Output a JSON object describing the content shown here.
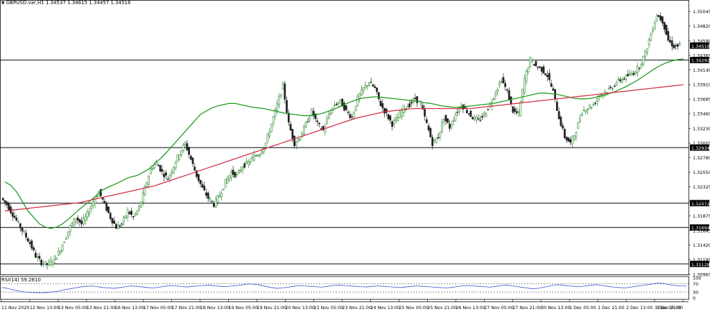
{
  "header": {
    "symbol_line": "GBPUSD.var,H1  1.34537 1.34615 1.34457 1.34516"
  },
  "rsi_panel": {
    "label": "RSI(14) 59.2810",
    "levels": [
      70,
      30
    ],
    "axis_labels": [
      "100",
      "70",
      "30",
      "0"
    ],
    "color": "#3b4fd6",
    "values": [
      52,
      48,
      40,
      35,
      30,
      28,
      26,
      25,
      27,
      30,
      34,
      40,
      45,
      50,
      55,
      58,
      60,
      56,
      52,
      50,
      48,
      52,
      56,
      60,
      58,
      55,
      52,
      50,
      54,
      58,
      62,
      60,
      57,
      55,
      58,
      60,
      62,
      64,
      60,
      58,
      56,
      60,
      62,
      66,
      70,
      68,
      64,
      58,
      52,
      48,
      50,
      54,
      58,
      62,
      60,
      58,
      56,
      54,
      58,
      62,
      64,
      62,
      60,
      58,
      56,
      55,
      58,
      60,
      58,
      56,
      54,
      52,
      55,
      58,
      60,
      58,
      56,
      54,
      52,
      50,
      52,
      56,
      60,
      62,
      60,
      58,
      56,
      54,
      58,
      62,
      64,
      60,
      56,
      52,
      48,
      46,
      50,
      56,
      62,
      66,
      64,
      60,
      58,
      56,
      60,
      64,
      66,
      62,
      58,
      54,
      52,
      50,
      54,
      58,
      62,
      66,
      70,
      74,
      72,
      66,
      62,
      60,
      59
    ]
  },
  "chart_data": {
    "type": "candlestick",
    "symbol": "GBPUSD.var",
    "timeframe": "H1",
    "last_price": "1.34516",
    "ylim": [
      1.30965,
      1.3516
    ],
    "y_tick_labels": [
      "1.35045",
      "1.34820",
      "1.34590",
      "1.34365",
      "1.34140",
      "1.33910",
      "1.33685",
      "1.33460",
      "1.33230",
      "1.33005",
      "1.32780",
      "1.32550",
      "1.32325",
      "1.32100",
      "1.31875",
      "1.31645",
      "1.31420",
      "1.31195",
      "1.30965"
    ],
    "x_tick_labels": [
      "11 Nov 2020",
      "12 Nov 13:00",
      "13 Nov 05:00",
      "13 Nov 21:00",
      "16 Nov 13:00",
      "17 Nov 05:00",
      "17 Nov 21:00",
      "18 Nov 13:00",
      "19 Nov 05:00",
      "19 Nov 21:00",
      "20 Nov 13:00",
      "23 Nov 05:00",
      "23 Nov 21:00",
      "24 Nov 13:00",
      "25 Nov 05:00",
      "25 Nov 21:00",
      "26 Nov 13:00",
      "27 Nov 05:00",
      "27 Nov 21:00",
      "30 Nov 13:00",
      "1 Dec 05:00",
      "1 Dec 21:00",
      "2 Dec 13:00",
      "3 Dec 05:00",
      "3 Dec 21:00"
    ],
    "horizontal_levels": [
      "1.34292",
      "1.32934",
      "1.32072",
      "1.31694",
      "1.31128"
    ],
    "price_path": [
      1.3215,
      1.3205,
      1.319,
      1.3175,
      1.316,
      1.3145,
      1.3125,
      1.3115,
      1.3112,
      1.3118,
      1.313,
      1.315,
      1.317,
      1.3185,
      1.3175,
      1.319,
      1.321,
      1.3225,
      1.3205,
      1.3185,
      1.317,
      1.3175,
      1.3195,
      1.3185,
      1.32,
      1.323,
      1.326,
      1.327,
      1.3255,
      1.3245,
      1.3265,
      1.3285,
      1.33,
      1.3275,
      1.325,
      1.323,
      1.3215,
      1.3205,
      1.322,
      1.324,
      1.3255,
      1.325,
      1.3265,
      1.327,
      1.328,
      1.3285,
      1.33,
      1.333,
      1.336,
      1.339,
      1.333,
      1.33,
      1.331,
      1.333,
      1.335,
      1.333,
      1.332,
      1.3345,
      1.336,
      1.3365,
      1.335,
      1.334,
      1.337,
      1.3385,
      1.3395,
      1.3385,
      1.336,
      1.3345,
      1.333,
      1.334,
      1.3355,
      1.336,
      1.337,
      1.336,
      1.333,
      1.33,
      1.331,
      1.334,
      1.3325,
      1.3345,
      1.336,
      1.335,
      1.334,
      1.3335,
      1.3345,
      1.336,
      1.338,
      1.34,
      1.338,
      1.335,
      1.3345,
      1.34,
      1.343,
      1.342,
      1.3415,
      1.3405,
      1.338,
      1.334,
      1.331,
      1.33,
      1.332,
      1.335,
      1.3355,
      1.336,
      1.3375,
      1.338,
      1.3385,
      1.3395,
      1.34,
      1.3405,
      1.341,
      1.342,
      1.344,
      1.347,
      1.35,
      1.349,
      1.346,
      1.345,
      1.3452
    ],
    "series": [
      {
        "name": "MA fast",
        "color": "#1f9a1f",
        "values": [
          1.324,
          1.3235,
          1.3225,
          1.321,
          1.3195,
          1.3185,
          1.3175,
          1.317,
          1.3168,
          1.317,
          1.3175,
          1.3182,
          1.319,
          1.3198,
          1.3205,
          1.3212,
          1.322,
          1.3228,
          1.3232,
          1.3236,
          1.324,
          1.3245,
          1.3248,
          1.325,
          1.3255,
          1.326,
          1.3268,
          1.3276,
          1.3285,
          1.3295,
          1.3305,
          1.3315,
          1.3325,
          1.3335,
          1.3345,
          1.335,
          1.3355,
          1.3358,
          1.336,
          1.3362,
          1.3362,
          1.336,
          1.3358,
          1.3356,
          1.3355,
          1.3354,
          1.3352,
          1.335,
          1.3348,
          1.3346,
          1.3345,
          1.3344,
          1.3343,
          1.3343,
          1.3344,
          1.3346,
          1.3349,
          1.3352,
          1.3356,
          1.336,
          1.3364,
          1.3367,
          1.337,
          1.3371,
          1.3372,
          1.3372,
          1.3371,
          1.337,
          1.3369,
          1.3368,
          1.3367,
          1.3366,
          1.3365,
          1.3363,
          1.3362,
          1.336,
          1.3358,
          1.3357,
          1.3356,
          1.3356,
          1.3357,
          1.3358,
          1.3359,
          1.336,
          1.3361,
          1.3362,
          1.3364,
          1.3366,
          1.3368,
          1.337,
          1.3372,
          1.3374,
          1.3376,
          1.3378,
          1.3378,
          1.3377,
          1.3376,
          1.3374,
          1.3372,
          1.337,
          1.3369,
          1.3369,
          1.337,
          1.3372,
          1.3374,
          1.3377,
          1.338,
          1.3384,
          1.3388,
          1.3393,
          1.3398,
          1.3404,
          1.341,
          1.3416,
          1.3421,
          1.3425,
          1.3428,
          1.343,
          1.3431
        ]
      },
      {
        "name": "MA slow",
        "color": "#d42f46",
        "values": [
          1.3195,
          1.3196,
          1.3197,
          1.3198,
          1.3199,
          1.32,
          1.3201,
          1.3202,
          1.3203,
          1.3204,
          1.3205,
          1.3206,
          1.3207,
          1.3208,
          1.321,
          1.3212,
          1.3214,
          1.3216,
          1.3218,
          1.322,
          1.3222,
          1.3224,
          1.3226,
          1.3228,
          1.323,
          1.3232,
          1.3234,
          1.3237,
          1.324,
          1.3243,
          1.3246,
          1.3249,
          1.3252,
          1.3255,
          1.3258,
          1.3261,
          1.3264,
          1.3267,
          1.327,
          1.3273,
          1.3276,
          1.3279,
          1.3282,
          1.3285,
          1.3288,
          1.3291,
          1.3294,
          1.3297,
          1.33,
          1.3303,
          1.3306,
          1.3309,
          1.3312,
          1.3315,
          1.3318,
          1.3321,
          1.3324,
          1.3327,
          1.333,
          1.3333,
          1.3336,
          1.3339,
          1.3341,
          1.3343,
          1.3345,
          1.3347,
          1.3349,
          1.335,
          1.3351,
          1.3352,
          1.3353,
          1.3354,
          1.3354,
          1.3354,
          1.3354,
          1.3354,
          1.3354,
          1.3354,
          1.3354,
          1.3354,
          1.3354,
          1.3354,
          1.3355,
          1.3356,
          1.3357,
          1.3358,
          1.3359,
          1.336,
          1.3361,
          1.3362,
          1.3363,
          1.3364,
          1.3365,
          1.3366,
          1.3367,
          1.3368,
          1.3369,
          1.337,
          1.3371,
          1.3372,
          1.3373,
          1.3374,
          1.3375,
          1.3376,
          1.3377,
          1.3378,
          1.3379,
          1.338,
          1.3381,
          1.3382,
          1.3383,
          1.3384,
          1.3385,
          1.3386,
          1.3387,
          1.3388,
          1.3389,
          1.339,
          1.3391
        ]
      }
    ],
    "candle_colors": {
      "up": "#2a8a2a",
      "down": "#222222"
    },
    "grid": false
  }
}
